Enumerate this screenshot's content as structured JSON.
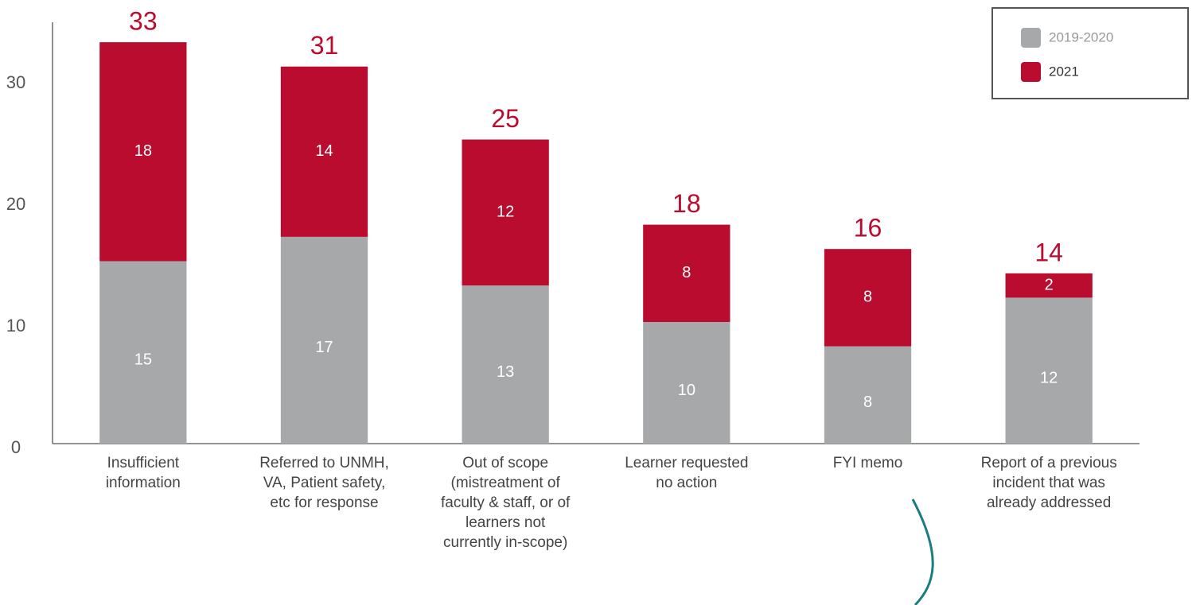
{
  "chart_data": {
    "type": "stacked_bar",
    "categories": [
      "Insufficient information",
      "Referred to UNMH, VA, Patient safety, etc for response",
      "Out of scope (mistreatment of faculty & staff, or of learners not currently in-scope)",
      "Learner requested no action",
      "FYI memo",
      "Report of a previous incident that was already addressed"
    ],
    "series": [
      {
        "name": "2019-2020",
        "color": "#a7a8aa",
        "values": [
          15,
          17,
          13,
          10,
          8,
          12
        ]
      },
      {
        "name": "2021",
        "color": "#ba0c2f",
        "values": [
          18,
          14,
          12,
          8,
          8,
          2
        ]
      }
    ],
    "totals": [
      33,
      31,
      25,
      18,
      16,
      14
    ],
    "ylim": [
      0,
      35
    ],
    "yticks": [
      0,
      10,
      20,
      30
    ],
    "grid": false,
    "legend": "top-right"
  }
}
